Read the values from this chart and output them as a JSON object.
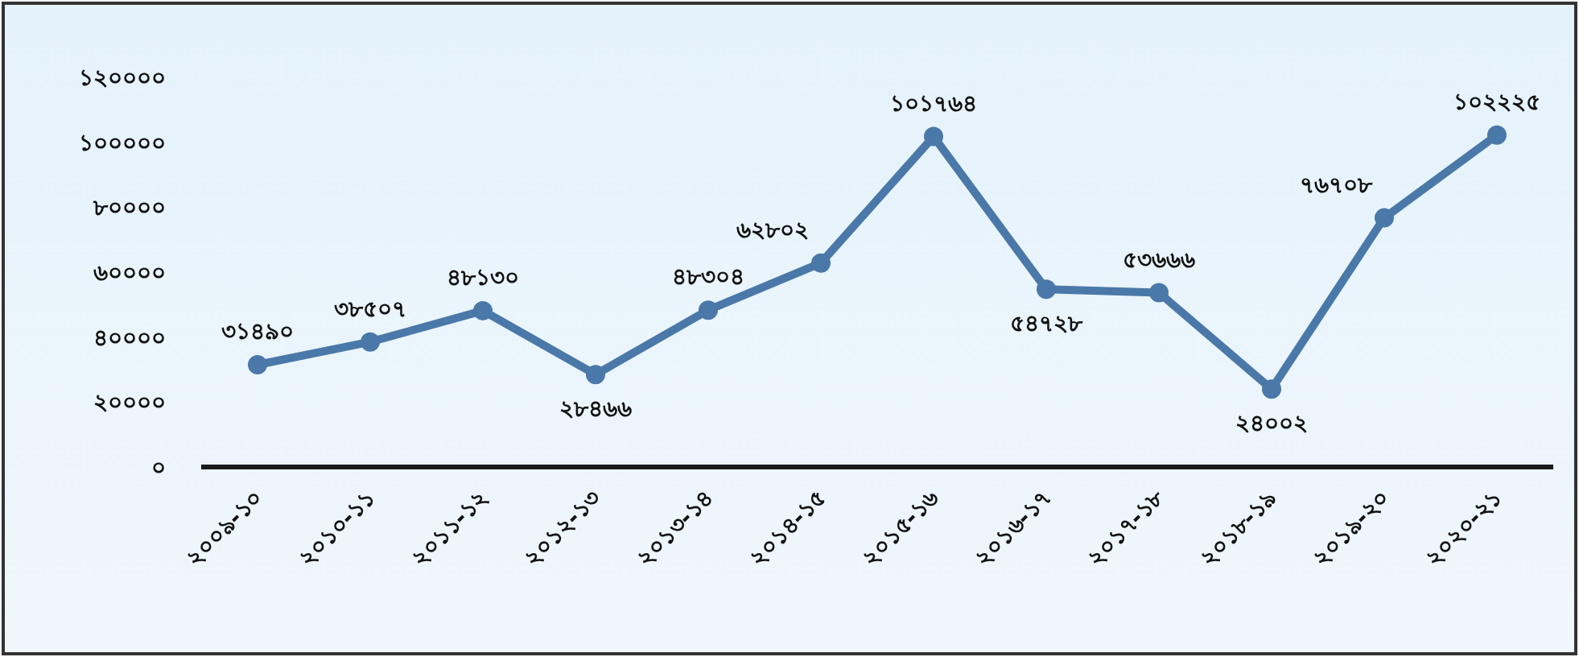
{
  "chart_data": {
    "type": "line",
    "categories": [
      "২০০৯-১০",
      "২০১০-১১",
      "২০১১-১২",
      "২০১২-১৩",
      "২০১৩-১৪",
      "২০১৪-১৫",
      "২০১৫-১৬",
      "২০১৬-১৭",
      "২০১৭-১৮",
      "২০১৮-১৯",
      "২০১৯-২০",
      "২০২০-২১"
    ],
    "series": [
      {
        "color": "#4a78a8",
        "values": [
          31490,
          38507,
          48130,
          28466,
          48304,
          62802,
          101764,
          54728,
          53666,
          24002,
          76708,
          102225
        ],
        "value_labels": [
          "৩১৪৯০",
          "৩৮৫০৭",
          "৪৮১৩০",
          "২৮৪৬৬",
          "৪৮৩০৪",
          "৬২৮০২",
          "১০১৭৬৪",
          "৫৪৭২৮",
          "৫৩৬৬৬",
          "২৪০০২",
          "৭৬৭০৮",
          "১০২২২৫"
        ]
      }
    ],
    "ylim": [
      0,
      120000
    ],
    "yticks": [
      {
        "value": 0,
        "label": "০"
      },
      {
        "value": 20000,
        "label": "২০০০০"
      },
      {
        "value": 40000,
        "label": "৪০০০০"
      },
      {
        "value": 60000,
        "label": "৬০০০০"
      },
      {
        "value": 80000,
        "label": "৮০০০০"
      },
      {
        "value": 100000,
        "label": "১০০০০০"
      },
      {
        "value": 120000,
        "label": "১২০০০০"
      }
    ],
    "marker": "circle",
    "grid": false
  }
}
